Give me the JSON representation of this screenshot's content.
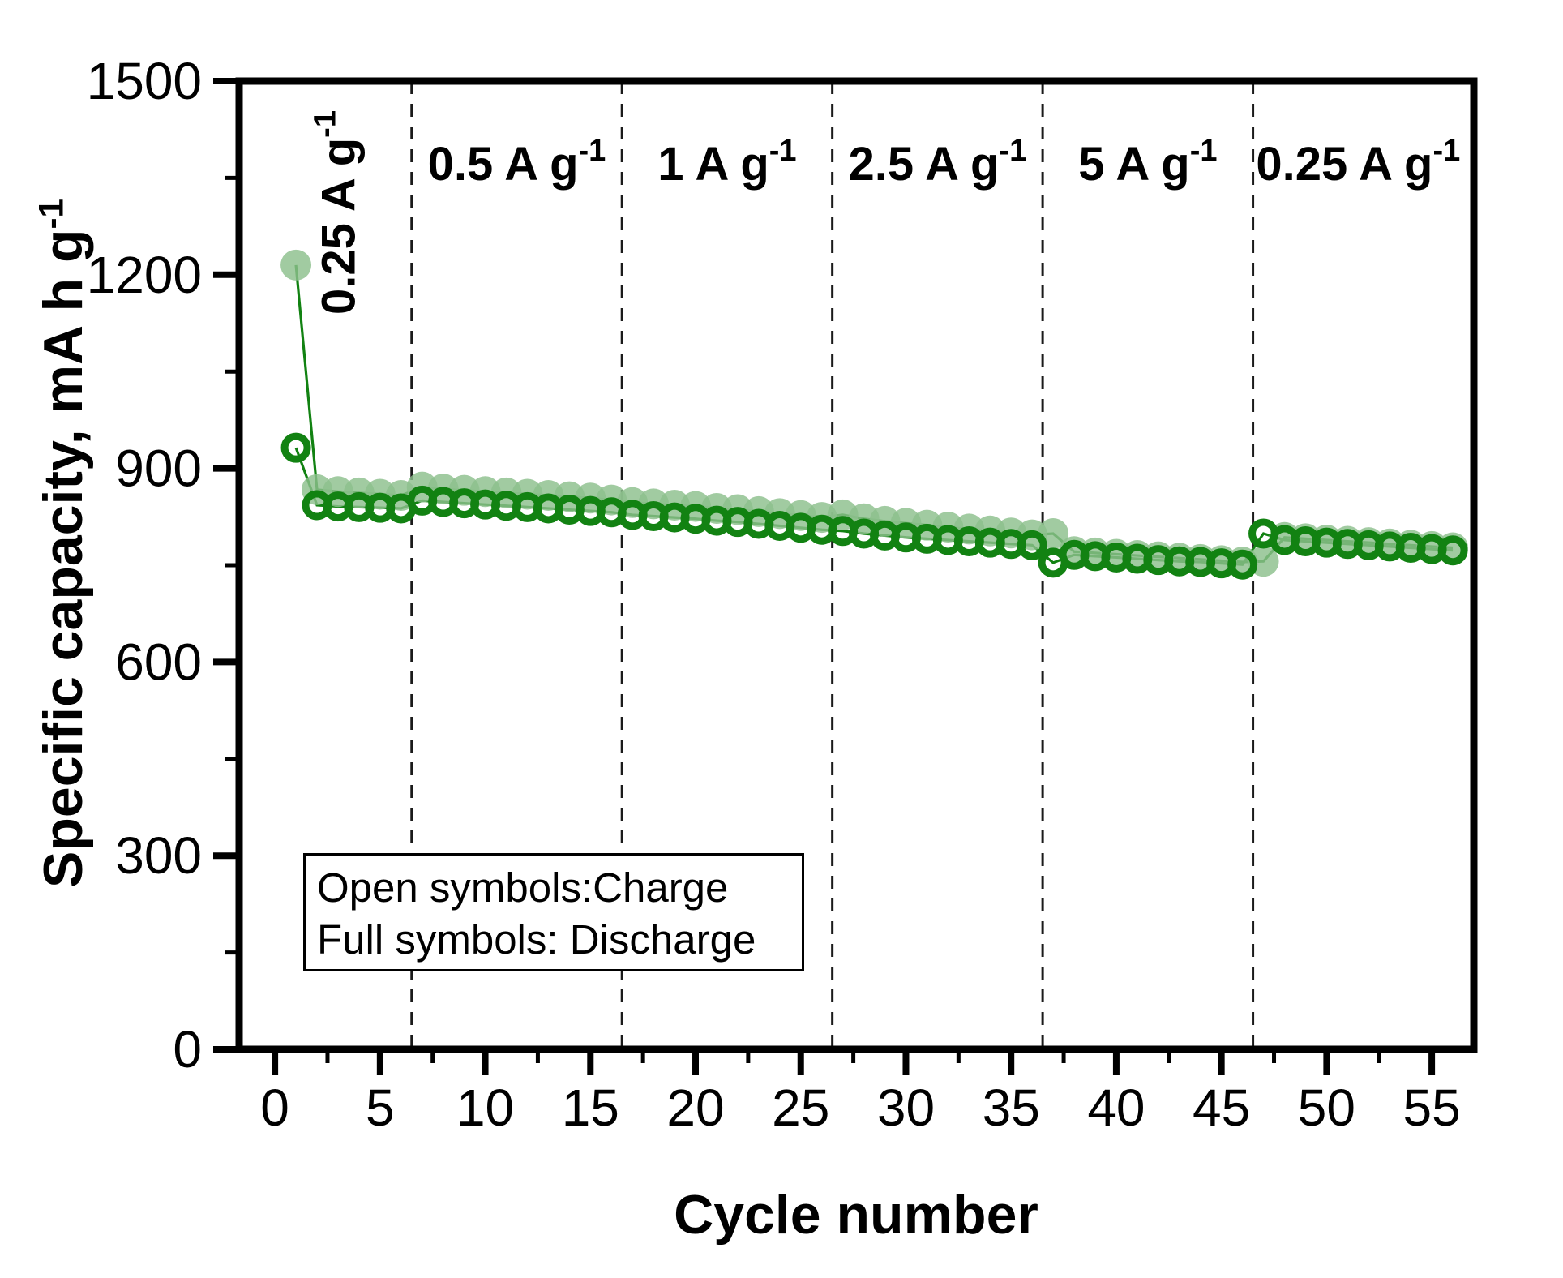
{
  "figure": {
    "background": "#ffffff"
  },
  "axes": {
    "y_title": "Specific capacity, mA h g",
    "y_title_sup": "-1",
    "x_title": "Cycle number"
  },
  "legend": {
    "line1": "Open symbols:Charge",
    "line2": "Full symbols: Discharge"
  },
  "chart_data": {
    "type": "scatter",
    "title": "",
    "xlabel": "Cycle number",
    "ylabel": "Specific capacity, mA h g^-1",
    "xlim": [
      -1.7,
      57
    ],
    "ylim": [
      0,
      1500
    ],
    "x_ticks_major": [
      0,
      5,
      10,
      15,
      20,
      25,
      30,
      35,
      40,
      45,
      50,
      55
    ],
    "x_ticks_minor": [
      2.5,
      7.5,
      12.5,
      17.5,
      22.5,
      27.5,
      32.5,
      37.5,
      42.5,
      47.5,
      52.5
    ],
    "y_ticks_major": [
      0,
      300,
      600,
      900,
      1200,
      1500
    ],
    "y_ticks_minor": [
      150,
      450,
      750,
      1050,
      1350
    ],
    "grid": false,
    "legend_position": "lower-left",
    "separators_x": [
      6.5,
      16.5,
      26.5,
      36.5,
      46.5
    ],
    "annotations": [
      {
        "text": "0.25 A g",
        "sup": "-1",
        "x": 3.8,
        "rotated": true
      },
      {
        "text": "0.5 A g",
        "sup": "-1",
        "x": 11.5,
        "rotated": false
      },
      {
        "text": "1 A g",
        "sup": "-1",
        "x": 21.5,
        "rotated": false
      },
      {
        "text": "2.5 A g",
        "sup": "-1",
        "x": 31.5,
        "rotated": false
      },
      {
        "text": "5 A g",
        "sup": "-1",
        "x": 41.5,
        "rotated": false
      },
      {
        "text": "0.25 A g",
        "sup": "-1",
        "x": 51.5,
        "rotated": false
      }
    ],
    "x": [
      1,
      2,
      3,
      4,
      5,
      6,
      7,
      8,
      9,
      10,
      11,
      12,
      13,
      14,
      15,
      16,
      17,
      18,
      19,
      20,
      21,
      22,
      23,
      24,
      25,
      26,
      27,
      28,
      29,
      30,
      31,
      32,
      33,
      34,
      35,
      36,
      37,
      38,
      39,
      40,
      41,
      42,
      43,
      44,
      45,
      46,
      47,
      48,
      49,
      50,
      51,
      52,
      53,
      54,
      55,
      56
    ],
    "series": [
      {
        "name": "Discharge",
        "marker": "filled",
        "values": [
          1215,
          867,
          864,
          862,
          860,
          858,
          871,
          868,
          866,
          864,
          862,
          860,
          858,
          856,
          854,
          851,
          847,
          845,
          843,
          841,
          838,
          836,
          833,
          830,
          827,
          824,
          828,
          822,
          818,
          815,
          812,
          809,
          806,
          803,
          800,
          797,
          799,
          771,
          769,
          767,
          765,
          763,
          761,
          759,
          757,
          755,
          756,
          793,
          791,
          789,
          787,
          785,
          783,
          781,
          779,
          777
        ]
      },
      {
        "name": "Charge",
        "marker": "open",
        "values": [
          932,
          843,
          841,
          840,
          839,
          838,
          850,
          848,
          846,
          844,
          842,
          840,
          838,
          836,
          834,
          832,
          828,
          826,
          824,
          822,
          819,
          817,
          814,
          811,
          808,
          805,
          803,
          799,
          796,
          793,
          791,
          789,
          787,
          785,
          783,
          781,
          754,
          766,
          764,
          762,
          760,
          758,
          756,
          755,
          753,
          751,
          799,
          789,
          787,
          785,
          783,
          781,
          779,
          777,
          775,
          773
        ]
      }
    ],
    "colors": {
      "discharge_fill": "#8CC08C",
      "charge_stroke": "#128212",
      "line": "#128212",
      "axis": "#000000",
      "separator": "#1a1a1a"
    }
  }
}
